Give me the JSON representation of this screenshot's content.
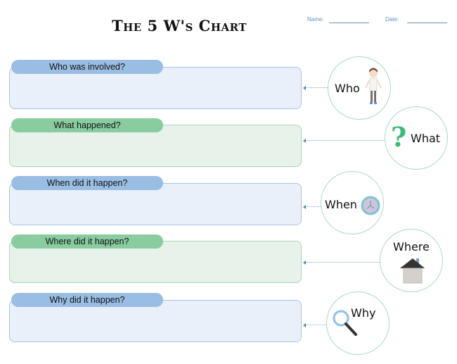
{
  "title": "The 5 W's Chart",
  "header": {
    "name_label": "Name:",
    "date_label": "Date:"
  },
  "rows": [
    {
      "question": "Who was involved?",
      "word": "Who",
      "icon": "person-icon",
      "color": "blue"
    },
    {
      "question": "What happened?",
      "word": "What",
      "icon": "question-mark-icon",
      "color": "green"
    },
    {
      "question": "When did it happen?",
      "word": "When",
      "icon": "clock-icon",
      "color": "blue"
    },
    {
      "question": "Where did it happen?",
      "word": "Where",
      "icon": "house-icon",
      "color": "green"
    },
    {
      "question": "Why did it happen?",
      "word": "Why",
      "icon": "magnifier-icon",
      "color": "blue"
    }
  ],
  "colors": {
    "blue_pill": "#99bde3",
    "green_pill": "#89cca0",
    "blue_box": "#e9f0f9",
    "green_box": "#e7f2ea",
    "circle_border": "#a9dcc0"
  }
}
